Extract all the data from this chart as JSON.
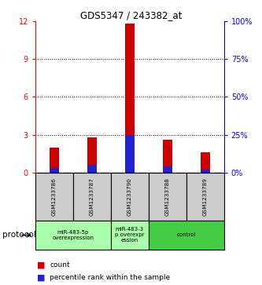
{
  "title": "GDS5347 / 243382_at",
  "samples": [
    "GSM1233786",
    "GSM1233787",
    "GSM1233790",
    "GSM1233788",
    "GSM1233789"
  ],
  "red_values": [
    2.0,
    2.8,
    11.8,
    2.6,
    1.6
  ],
  "blue_values_pct": [
    3.0,
    5.0,
    25.0,
    4.0,
    2.0
  ],
  "ylim_left": [
    0,
    12
  ],
  "ylim_right": [
    0,
    100
  ],
  "yticks_left": [
    0,
    3,
    6,
    9,
    12
  ],
  "yticks_right": [
    0,
    25,
    50,
    75,
    100
  ],
  "ytick_labels_right": [
    "0%",
    "25%",
    "50%",
    "75%",
    "100%"
  ],
  "sample_box_color": "#cccccc",
  "bar_width": 0.25,
  "red_color": "#cc0000",
  "blue_color": "#2222cc",
  "grid_color": "#000000",
  "protocol_label": "protocol",
  "legend_red": "count",
  "legend_blue": "percentile rank within the sample",
  "group_defs": [
    {
      "start": 0,
      "end": 1,
      "label": "miR-483-5p\noverexpression",
      "color": "#aaffaa"
    },
    {
      "start": 2,
      "end": 2,
      "label": "miR-483-3\np overexpr\nession",
      "color": "#aaffaa"
    },
    {
      "start": 3,
      "end": 4,
      "label": "control",
      "color": "#44cc44"
    }
  ]
}
